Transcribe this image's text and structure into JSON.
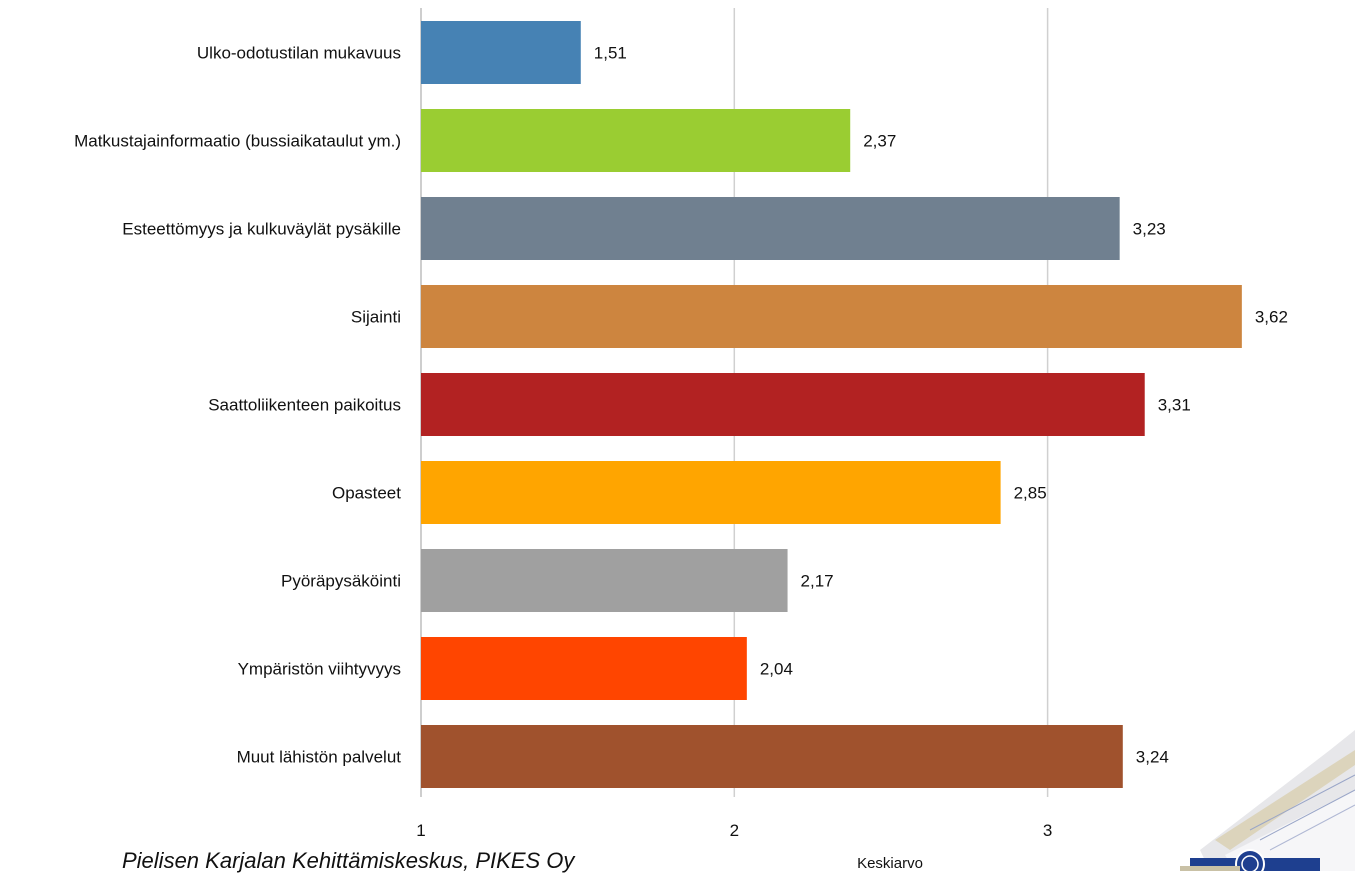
{
  "chart_data": {
    "type": "bar",
    "orientation": "horizontal",
    "categories": [
      "Ulko-odotustilan mukavuus",
      "Matkustajainformaatio (bussiaikataulut ym.)",
      "Esteettömyys ja kulkuväylät pysäkille",
      "Sijainti",
      "Saattoliikenteen paikoitus",
      "Opasteet",
      "Pyöräpysäköinti",
      "Ympäristön viihtyvyys",
      "Muut lähistön palvelut"
    ],
    "values": [
      1.51,
      2.37,
      3.23,
      3.62,
      3.31,
      2.85,
      2.17,
      2.04,
      3.24
    ],
    "value_labels": [
      "1,51",
      "2,37",
      "3,23",
      "3,62",
      "3,31",
      "2,85",
      "2,17",
      "2,04",
      "3,24"
    ],
    "colors": [
      "#4682B4",
      "#9ACD32",
      "#708090",
      "#CD853F",
      "#B22222",
      "#FFA500",
      "#A0A0A0",
      "#FF4500",
      "#A0522D"
    ],
    "xticks": [
      "1",
      "2",
      "3"
    ],
    "xlim": [
      1,
      3.62
    ],
    "xlabel": "Keskiarvo",
    "ylabel": "",
    "title": "",
    "grid": true,
    "gridline_color": "#d0d0d0"
  },
  "footer": {
    "text": "Pielisen Karjalan Kehittämiskeskus, PIKES Oy"
  },
  "corner_image": {
    "icon": "brochure-photo-icon"
  }
}
